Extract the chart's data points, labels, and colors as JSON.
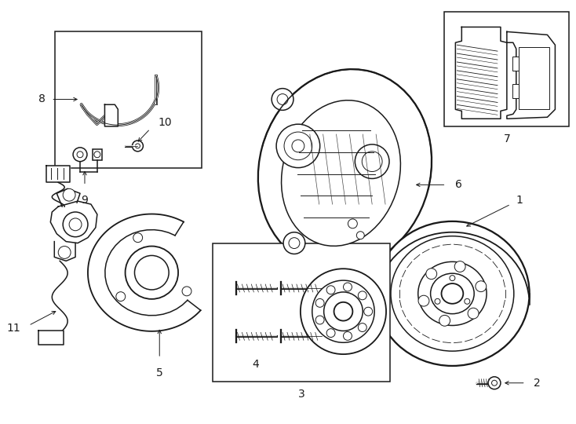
{
  "background_color": "#ffffff",
  "line_color": "#1a1a1a",
  "fig_width": 7.34,
  "fig_height": 5.4,
  "dpi": 100
}
